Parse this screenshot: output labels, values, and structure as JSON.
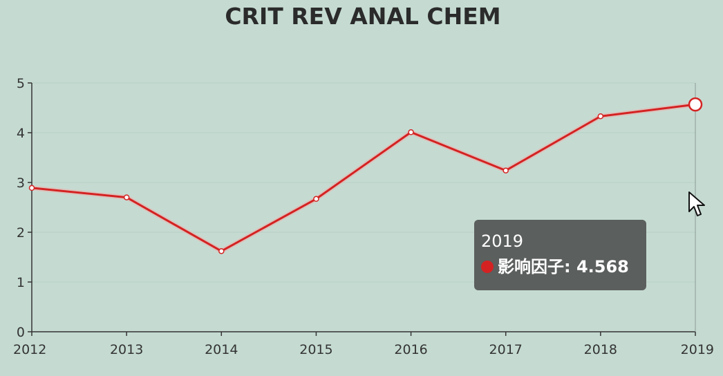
{
  "chart_data": {
    "type": "line",
    "title": "CRIT REV ANAL CHEM",
    "categories": [
      "2012",
      "2013",
      "2014",
      "2015",
      "2016",
      "2017",
      "2018",
      "2019"
    ],
    "series": [
      {
        "name": "影响因子",
        "values": [
          2.89,
          2.7,
          1.62,
          2.67,
          4.01,
          3.24,
          4.33,
          4.568
        ]
      }
    ],
    "ylim": [
      0,
      5
    ],
    "yticks": [
      "0",
      "1",
      "2",
      "3",
      "4",
      "5"
    ],
    "grid": true,
    "legend": "none"
  },
  "tooltip": {
    "title": "2019",
    "series_label": "影响因子",
    "value": "4.568",
    "text": "影响因子: 4.568"
  },
  "colors": {
    "background": "#c5dbd2",
    "line": "#d42222",
    "axis": "#333333",
    "grid": "#b8cfc6",
    "tooltip_bg": "#5b5f5d"
  },
  "icons": {
    "cursor": "mouse-pointer-icon"
  }
}
